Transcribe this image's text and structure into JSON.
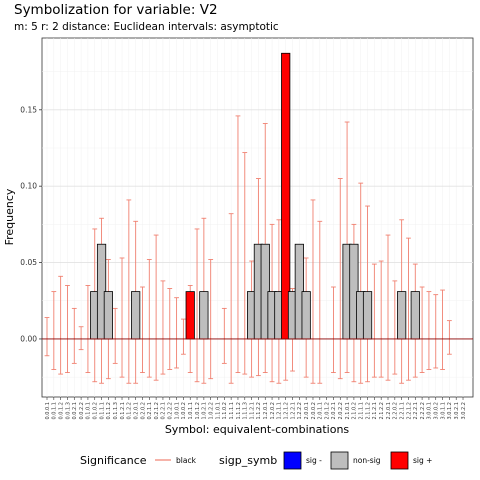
{
  "title": "Symbolization for variable: V2",
  "subtitle": "m: 5  r:  2  distance:  Euclidean  intervals:  asymptotic",
  "colors": {
    "ci": "#f08070",
    "non_sig": "#bebebe",
    "sig_plus": "#ff0000",
    "sig_minus": "#0000ff",
    "grid_major": "#e2e2e2",
    "grid_minor": "#f1f1f1"
  },
  "chart_data": {
    "type": "bar",
    "xlabel": "Symbol: equivalent-combinations",
    "ylabel": "Frequency",
    "ylim": [
      -0.038,
      0.197
    ],
    "yticks": [
      0.0,
      0.05,
      0.1,
      0.15
    ],
    "ytick_labels": [
      "0.00",
      "0.05",
      "0.10",
      "0.15"
    ],
    "grid": true,
    "categories": [
      "0.0.0.1",
      "0.0.1.1",
      "0.0.1.2",
      "0.0.1.3",
      "0.0.2.1",
      "0.0.2.2",
      "0.1.0.1",
      "0.1.0.2",
      "0.1.1.1",
      "0.1.1.2",
      "0.1.1.3",
      "0.1.2.1",
      "0.1.2.2",
      "0.2.0.1",
      "0.2.0.2",
      "0.2.1.1",
      "0.2.1.2",
      "0.2.2.1",
      "0.2.2.2",
      "1.0.0.1",
      "1.0.0.2",
      "1.0.1.1",
      "1.0.1.2",
      "1.0.2.1",
      "1.0.2.2",
      "1.1.0.1",
      "1.1.0.2",
      "1.1.1.1",
      "1.1.1.2",
      "1.1.1.3",
      "1.1.2.1",
      "1.1.2.2",
      "1.2.0.1",
      "1.2.0.2",
      "1.2.1.1",
      "1.2.1.2",
      "1.2.2.1",
      "1.2.2.2",
      "2.0.0.1",
      "2.0.0.2",
      "2.0.1.1",
      "2.0.1.2",
      "2.0.2.1",
      "2.0.2.2",
      "2.1.0.1",
      "2.1.0.2",
      "2.1.1.1",
      "2.1.1.2",
      "2.1.2.1",
      "2.1.2.2",
      "2.2.0.1",
      "2.2.0.2",
      "2.2.1.1",
      "2.2.1.2",
      "2.2.2.1",
      "2.2.2.2",
      "3.0.0.1",
      "3.0.0.2",
      "3.0.1.1",
      "3.0.1.2",
      "3.0.2.1",
      "3.0.2.2"
    ],
    "values": [
      0,
      0,
      0,
      0,
      0,
      0,
      0,
      0.031,
      0.062,
      0.031,
      0,
      0,
      0,
      0.031,
      0,
      0,
      0,
      0,
      0,
      0,
      0,
      0.031,
      0,
      0.031,
      0,
      0,
      0,
      0,
      0,
      0,
      0.031,
      0.062,
      0.062,
      0.031,
      0.031,
      0.187,
      0.031,
      0.062,
      0.031,
      0,
      0,
      0,
      0,
      0,
      0.062,
      0.062,
      0.031,
      0.031,
      0,
      0,
      0,
      0,
      0.031,
      0,
      0.031,
      0,
      0,
      0,
      0,
      0,
      0,
      0
    ],
    "significance": [
      "n",
      "n",
      "n",
      "n",
      "n",
      "n",
      "n",
      "non",
      "non",
      "non",
      "n",
      "n",
      "n",
      "non",
      "n",
      "n",
      "n",
      "n",
      "n",
      "n",
      "n",
      "sig+",
      "n",
      "non",
      "n",
      "n",
      "n",
      "n",
      "n",
      "n",
      "non",
      "non",
      "non",
      "non",
      "non",
      "sig+",
      "non",
      "non",
      "non",
      "n",
      "n",
      "n",
      "n",
      "n",
      "non",
      "non",
      "non",
      "non",
      "n",
      "n",
      "n",
      "n",
      "non",
      "n",
      "non",
      "n",
      "n",
      "n",
      "n",
      "n",
      "n",
      "n"
    ],
    "ci_upper": [
      0.014,
      0.031,
      0.041,
      0.035,
      0.02,
      0.008,
      0.035,
      0.072,
      0.079,
      0.052,
      0.02,
      0.053,
      0.091,
      0.077,
      0.034,
      0.052,
      0.068,
      0.038,
      0.033,
      0.027,
      0.013,
      0.035,
      0.072,
      0.079,
      0.052,
      0.0,
      0.02,
      0.082,
      0.146,
      0.122,
      0.051,
      0.105,
      0.141,
      0.075,
      0.078,
      0.066,
      0.033,
      0.0,
      0.053,
      0.091,
      0.077,
      0.0,
      0.034,
      0.105,
      0.142,
      0.075,
      0.102,
      0.087,
      0.049,
      0.051,
      0.068,
      0.038,
      0.078,
      0.066,
      0.049,
      0.034,
      0.031,
      0.029,
      0.032,
      0.012,
      0.0,
      0.0
    ],
    "ci_lower": [
      -0.011,
      -0.02,
      -0.023,
      -0.022,
      -0.016,
      -0.007,
      -0.022,
      -0.028,
      -0.029,
      -0.026,
      -0.016,
      -0.025,
      -0.029,
      -0.029,
      -0.022,
      -0.025,
      -0.027,
      -0.023,
      -0.02,
      -0.019,
      -0.01,
      -0.022,
      -0.028,
      -0.029,
      -0.026,
      0.0,
      -0.016,
      -0.029,
      -0.022,
      -0.023,
      -0.025,
      -0.024,
      -0.022,
      -0.028,
      -0.029,
      -0.027,
      -0.021,
      0.0,
      -0.025,
      -0.029,
      -0.029,
      0.0,
      -0.022,
      -0.026,
      -0.022,
      -0.028,
      -0.029,
      -0.028,
      -0.025,
      -0.025,
      -0.027,
      -0.023,
      -0.029,
      -0.027,
      -0.025,
      -0.022,
      -0.02,
      -0.019,
      -0.02,
      -0.01,
      0.0,
      0.0
    ],
    "legend": {
      "placement": "bottom",
      "significance_title": "Significance",
      "significance_label": "black",
      "sigp_title": "sigp_symb",
      "entries": [
        {
          "label": "sig -",
          "color": "#0000ff"
        },
        {
          "label": "non-sig",
          "color": "#bebebe"
        },
        {
          "label": "sig +",
          "color": "#ff0000"
        }
      ]
    }
  }
}
